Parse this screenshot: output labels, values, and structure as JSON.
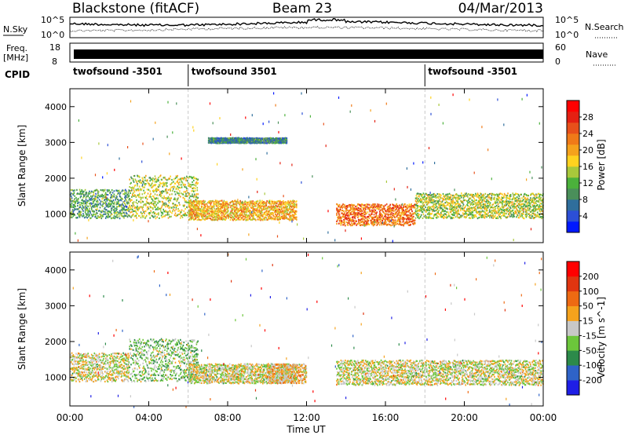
{
  "header": {
    "station": "Blackstone (fitACF)",
    "beam": "Beam 23",
    "date": "04/Mar/2013"
  },
  "top_panels": {
    "nsky_label": "N.Sky",
    "nsky_ticks": [
      "10^5",
      "10^0"
    ],
    "nsearch_label": "N.Search",
    "nsearch_ticks": [
      "10^5",
      "10^0"
    ],
    "freq_label": "Freq.",
    "freq_unit": "[MHz]",
    "freq_ticks": [
      "18",
      "8"
    ],
    "nave_label": "Nave",
    "nave_ticks": [
      "60",
      "0"
    ],
    "cpid_label": "CPID",
    "cpid_segments": [
      {
        "label": "twofsound -3501",
        "start_hour": 0
      },
      {
        "label": "twofsound 3501",
        "start_hour": 6
      },
      {
        "label": "twofsound -3501",
        "start_hour": 18
      }
    ]
  },
  "colors": {
    "power": [
      "#0018ff",
      "#2c4fd6",
      "#2f6e9c",
      "#4a8f5a",
      "#4bb13b",
      "#a8c83b",
      "#ffd21f",
      "#f5a21c",
      "#f07a18",
      "#e8501a",
      "#e42012",
      "#ff0000"
    ],
    "velocity": [
      "#1e1ee6",
      "#2f63c8",
      "#2c8a4a",
      "#6cc63b",
      "#c8c8c8",
      "#f5a21c",
      "#ee6a12",
      "#e03510",
      "#ff0000"
    ]
  },
  "chart_data": [
    {
      "type": "heatmap",
      "panel": "power",
      "xlabel": "Time UT",
      "ylabel": "Slant Range [km]",
      "xlim": [
        0,
        24
      ],
      "ylim": [
        200,
        4500
      ],
      "xticks": [
        "00:00",
        "04:00",
        "08:00",
        "12:00",
        "16:00",
        "20:00",
        "00:00"
      ],
      "yticks": [
        "1000",
        "2000",
        "3000",
        "4000"
      ],
      "colorbar_label": "Power [dB]",
      "colorbar_ticks": [
        "28",
        "24",
        "20",
        "16",
        "12",
        "8",
        "4"
      ],
      "colorbar_range": [
        0,
        30
      ],
      "echo_regions": [
        {
          "t0": 0.0,
          "t1": 3.0,
          "r0": 900,
          "r1": 1700,
          "value": 10
        },
        {
          "t0": 3.0,
          "t1": 6.5,
          "r0": 900,
          "r1": 2100,
          "value": 14
        },
        {
          "t0": 6.0,
          "t1": 11.5,
          "r0": 850,
          "r1": 1400,
          "value": 18
        },
        {
          "t0": 13.5,
          "t1": 17.5,
          "r0": 700,
          "r1": 1300,
          "value": 22
        },
        {
          "t0": 17.5,
          "t1": 24.0,
          "r0": 900,
          "r1": 1600,
          "value": 14
        },
        {
          "t0": 7.0,
          "t1": 11.0,
          "r0": 3000,
          "r1": 3150,
          "value": 8
        }
      ]
    },
    {
      "type": "heatmap",
      "panel": "velocity",
      "xlabel": "Time UT",
      "ylabel": "Slant Range [km]",
      "xlim": [
        0,
        24
      ],
      "ylim": [
        200,
        4500
      ],
      "xticks": [
        "00:00",
        "04:00",
        "08:00",
        "12:00",
        "16:00",
        "20:00",
        "00:00"
      ],
      "yticks": [
        "1000",
        "2000",
        "3000",
        "4000"
      ],
      "colorbar_label": "Velocity [m s^-1]",
      "colorbar_ticks": [
        "200",
        "100",
        "50",
        "15",
        "-15",
        "-50",
        "-100",
        "-200"
      ],
      "colorbar_range": [
        -250,
        250
      ],
      "echo_regions": [
        {
          "t0": 0.0,
          "t1": 3.0,
          "r0": 900,
          "r1": 1700,
          "value": 0
        },
        {
          "t0": 3.0,
          "t1": 6.5,
          "r0": 900,
          "r1": 2100,
          "value": -40
        },
        {
          "t0": 6.0,
          "t1": 11.5,
          "r0": 850,
          "r1": 1400,
          "value": 0
        },
        {
          "t0": 10.0,
          "t1": 12.0,
          "r0": 850,
          "r1": 1400,
          "value": 40
        },
        {
          "t0": 13.5,
          "t1": 24.0,
          "r0": 800,
          "r1": 1500,
          "value": 0
        }
      ]
    }
  ]
}
